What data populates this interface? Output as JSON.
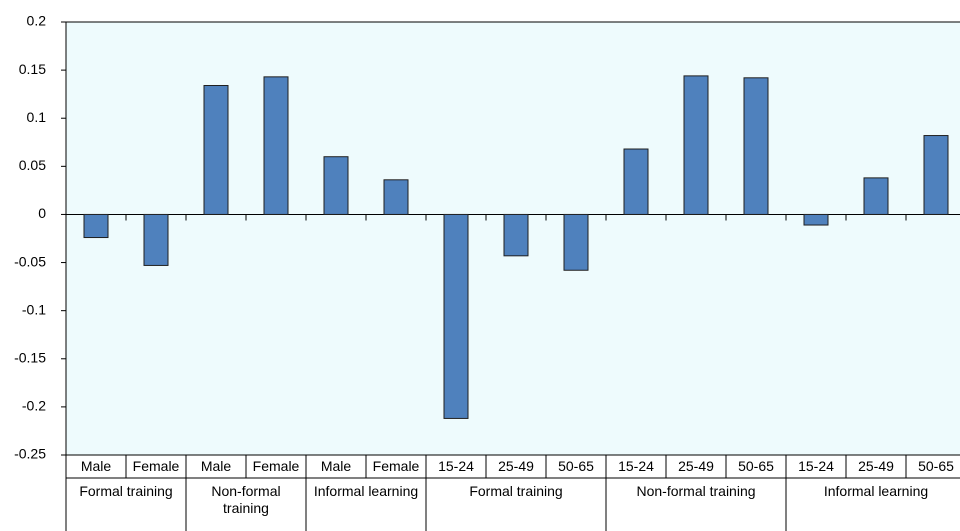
{
  "chart_data": {
    "type": "bar",
    "groups": [
      {
        "label": "Formal training",
        "categories": [
          "Male",
          "Female"
        ]
      },
      {
        "label": "Non-formal training",
        "categories": [
          "Male",
          "Female"
        ]
      },
      {
        "label": "Informal learning",
        "categories": [
          "Male",
          "Female"
        ]
      },
      {
        "label": "Formal training",
        "categories": [
          "15-24",
          "25-49",
          "50-65"
        ]
      },
      {
        "label": "Non-formal training",
        "categories": [
          "15-24",
          "25-49",
          "50-65"
        ]
      },
      {
        "label": "Informal learning",
        "categories": [
          "15-24",
          "25-49",
          "50-65"
        ]
      }
    ],
    "values": [
      -0.024,
      -0.053,
      0.134,
      0.143,
      0.06,
      0.036,
      -0.212,
      -0.043,
      -0.058,
      0.068,
      0.144,
      0.142,
      -0.011,
      0.038,
      0.082
    ],
    "color": "#4f81bd",
    "ylim": [
      -0.25,
      0.2
    ],
    "yticks": [
      -0.25,
      -0.2,
      -0.15,
      -0.1,
      -0.05,
      0,
      0.05,
      0.1,
      0.15,
      0.2
    ]
  }
}
